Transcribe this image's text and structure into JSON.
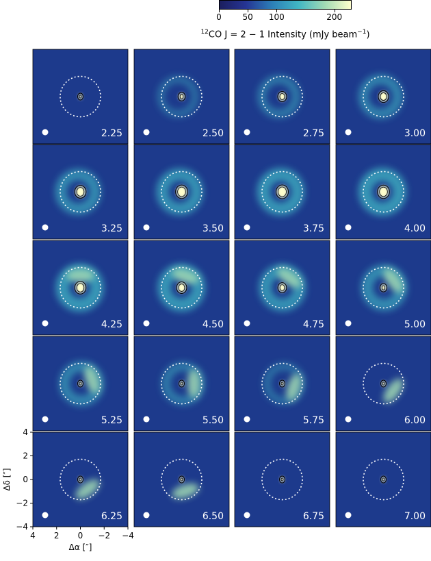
{
  "colorbar": {
    "title_pre": "12",
    "title_main": "CO J = 2 − 1 Intensity (mJy beam",
    "title_exp": "−1",
    "title_post": ")",
    "ticks": [
      "0",
      "50",
      "100",
      "200"
    ],
    "tick_values": [
      0,
      50,
      100,
      200
    ],
    "vmax": 230,
    "colormap": [
      "#1b1e5e",
      "#253494",
      "#2c7fb8",
      "#41b6c4",
      "#a1dab4",
      "#ffffcc"
    ]
  },
  "axes": {
    "xlabel": "Δα [″]",
    "ylabel": "Δδ [″]",
    "xticks": [
      "4",
      "2",
      "0",
      "−2",
      "−4"
    ],
    "yticks": [
      "4",
      "2",
      "0",
      "−2",
      "−4"
    ],
    "xlim": [
      4,
      -4
    ],
    "ylim": [
      -4,
      4
    ]
  },
  "chart_data": {
    "type": "channel_maps",
    "velocity_channels": [
      "2.25",
      "2.50",
      "2.75",
      "3.00",
      "3.25",
      "3.50",
      "3.75",
      "4.00",
      "4.25",
      "4.50",
      "4.75",
      "5.00",
      "5.25",
      "5.50",
      "5.75",
      "6.00",
      "6.25",
      "6.50",
      "6.75",
      "7.00"
    ],
    "grid": {
      "rows": 5,
      "cols": 4
    },
    "reference_circle_radius_arcsec": 1.7,
    "beam_marker": "white filled ellipse in lower-left of each panel",
    "background_color": "#1d3a8c"
  }
}
